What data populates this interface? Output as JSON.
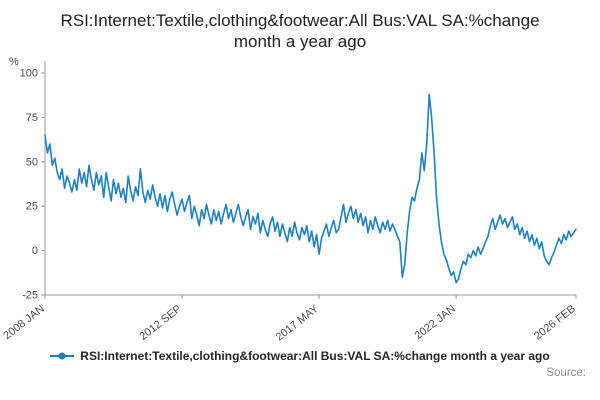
{
  "header": {
    "title": "RSI:Internet:Textile,clothing&footwear:All Bus:VAL SA:%change month a year ago"
  },
  "legend": {
    "label": "RSI:Internet:Textile,clothing&footwear:All Bus:VAL SA:%change month a year ago"
  },
  "footer": {
    "source": "Source:"
  },
  "chart_data": {
    "type": "line",
    "title": "RSI:Internet:Textile,clothing&footwear:All Bus:VAL SA:%change month a year ago",
    "xlabel": "",
    "ylabel": "%",
    "ylim": [
      -25,
      100
    ],
    "yticks": [
      100,
      75,
      50,
      25,
      0,
      -25
    ],
    "grid": false,
    "legend_position": "bottom",
    "x_start": "2008 JAN",
    "x_end": "2026 FEB",
    "xticks": [
      {
        "index": 0,
        "label": "2008 JAN"
      },
      {
        "index": 56,
        "label": "2012 SEP"
      },
      {
        "index": 112,
        "label": "2017 MAY"
      },
      {
        "index": 168,
        "label": "2022 JAN"
      },
      {
        "index": 217,
        "label": "2026 FEB"
      }
    ],
    "series": [
      {
        "name": "RSI:Internet:Textile,clothing&footwear:All Bus:VAL SA:%change month a year ago",
        "color": "#1f7fbf",
        "values": [
          65,
          55,
          60,
          48,
          52,
          44,
          40,
          46,
          35,
          42,
          38,
          33,
          40,
          34,
          46,
          38,
          44,
          36,
          48,
          40,
          34,
          44,
          37,
          42,
          30,
          44,
          36,
          28,
          40,
          32,
          38,
          30,
          35,
          27,
          42,
          34,
          28,
          36,
          31,
          46,
          33,
          27,
          34,
          29,
          37,
          30,
          25,
          32,
          24,
          31,
          22,
          29,
          33,
          26,
          20,
          25,
          29,
          22,
          27,
          31,
          18,
          25,
          20,
          14,
          23,
          18,
          26,
          20,
          15,
          23,
          17,
          22,
          15,
          21,
          26,
          18,
          23,
          16,
          21,
          26,
          19,
          14,
          19,
          23,
          12,
          19,
          15,
          21,
          10,
          17,
          12,
          8,
          15,
          19,
          11,
          16,
          8,
          15,
          10,
          5,
          13,
          8,
          16,
          10,
          6,
          13,
          9,
          14,
          5,
          11,
          2,
          9,
          -2,
          7,
          11,
          15,
          8,
          13,
          17,
          10,
          12,
          19,
          26,
          16,
          21,
          25,
          18,
          23,
          16,
          21,
          14,
          19,
          10,
          17,
          12,
          19,
          14,
          10,
          16,
          12,
          17,
          11,
          15,
          12,
          8,
          5,
          -15,
          -8,
          10,
          22,
          30,
          28,
          35,
          40,
          55,
          45,
          60,
          88,
          75,
          55,
          30,
          15,
          5,
          -2,
          -5,
          -10,
          -14,
          -12,
          -18,
          -16,
          -10,
          -6,
          -8,
          -2,
          -4,
          0,
          -3,
          2,
          -2,
          1,
          5,
          8,
          14,
          18,
          12,
          16,
          20,
          15,
          18,
          13,
          16,
          19,
          12,
          15,
          9,
          13,
          7,
          11,
          5,
          9,
          3,
          7,
          1,
          5,
          -3,
          -6,
          -8,
          -4,
          -1,
          3,
          7,
          4,
          9,
          6,
          11,
          8,
          10,
          12
        ]
      }
    ]
  }
}
